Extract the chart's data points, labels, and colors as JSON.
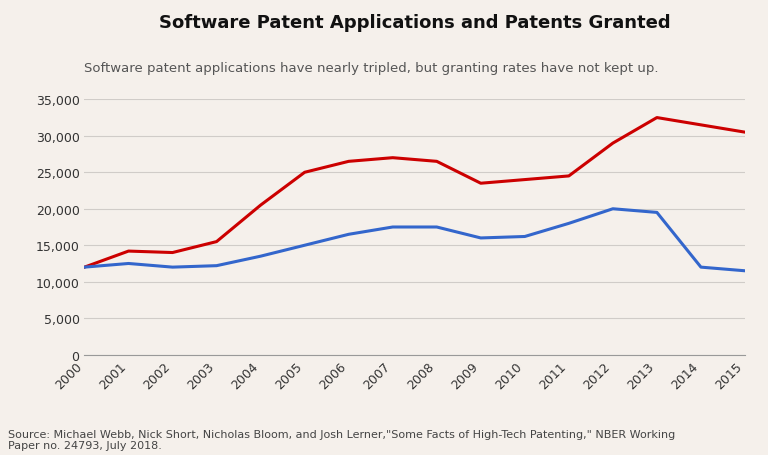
{
  "title": "Software Patent Applications and Patents Granted",
  "subtitle": "Software patent applications have nearly tripled, but granting rates have not kept up.",
  "source": "Source: Michael Webb, Nick Short, Nicholas Bloom, and Josh Lerner,\"Some Facts of High-Tech Patenting,\" NBER Working\nPaper no. 24793, July 2018.",
  "years": [
    2000,
    2001,
    2002,
    2003,
    2004,
    2005,
    2006,
    2007,
    2008,
    2009,
    2010,
    2011,
    2012,
    2013,
    2014,
    2015
  ],
  "applications": [
    12000,
    14200,
    14000,
    15500,
    20500,
    25000,
    26500,
    27000,
    26500,
    23500,
    24000,
    24500,
    29000,
    32500,
    31500,
    30500
  ],
  "granted": [
    12000,
    12500,
    12000,
    12200,
    13500,
    15000,
    16500,
    17500,
    17500,
    16000,
    16200,
    18000,
    20000,
    19500,
    12000,
    11500
  ],
  "line_color_applications": "#cc0000",
  "line_color_granted": "#3366cc",
  "background_color": "#f5f0eb",
  "grid_color": "#d0ccc8",
  "ylim": [
    0,
    35000
  ],
  "yticks": [
    0,
    5000,
    10000,
    15000,
    20000,
    25000,
    30000,
    35000
  ],
  "title_fontsize": 13,
  "subtitle_fontsize": 9.5,
  "tick_fontsize": 9,
  "source_fontsize": 8,
  "line_width": 2.2
}
